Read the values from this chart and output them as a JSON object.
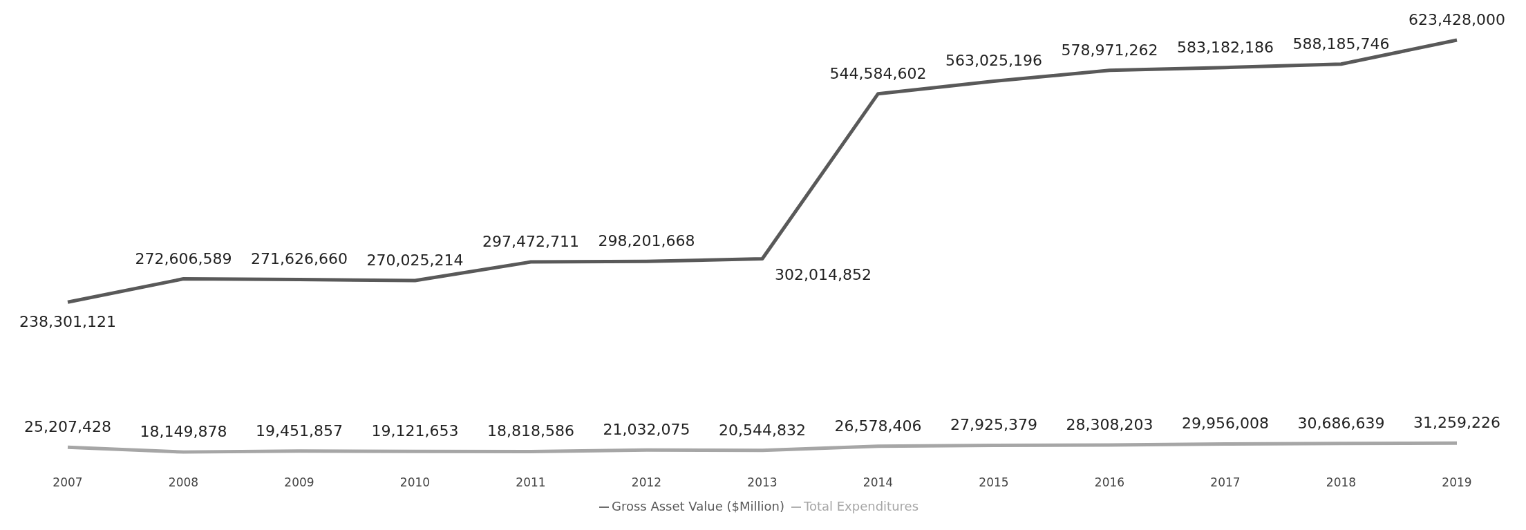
{
  "chart_data": {
    "type": "line",
    "categories": [
      "2007",
      "2008",
      "2009",
      "2010",
      "2011",
      "2012",
      "2013",
      "2014",
      "2015",
      "2016",
      "2017",
      "2018",
      "2019"
    ],
    "series": [
      {
        "name": "Gross Asset Value ($Million)",
        "color": "#595959",
        "values": [
          238301121,
          272606589,
          271626660,
          270025214,
          297472711,
          298201668,
          302014852,
          544584602,
          563025196,
          578971262,
          583182186,
          588185746,
          623428000
        ],
        "value_labels": [
          "238,301,121",
          "272,606,589",
          "271,626,660",
          "270,025,214",
          "297,472,711",
          "298,201,668",
          "302,014,852",
          "544,584,602",
          "563,025,196",
          "578,971,262",
          "583,182,186",
          "588,185,746",
          "623,428,000"
        ]
      },
      {
        "name": "Total Expenditures",
        "color": "#a6a6a6",
        "values": [
          25207428,
          18149878,
          19451857,
          19121653,
          18818586,
          21032075,
          20544832,
          26578406,
          27925379,
          28308203,
          29956008,
          30686639,
          31259226
        ],
        "value_labels": [
          "25,207,428",
          "18,149,878",
          "19,451,857",
          "19,121,653",
          "18,818,586",
          "21,032,075",
          "20,544,832",
          "26,578,406",
          "27,925,379",
          "28,308,203",
          "29,956,008",
          "30,686,639",
          "31,259,226"
        ]
      }
    ],
    "legend": "bottom",
    "marker": "none",
    "line_style": "solid"
  }
}
